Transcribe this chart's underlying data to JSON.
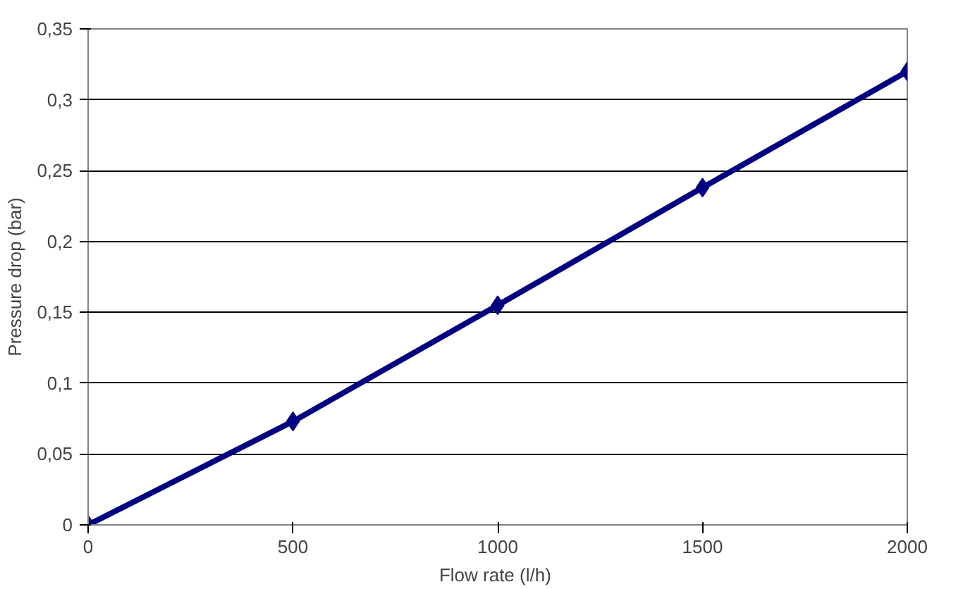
{
  "chart_data": {
    "type": "line",
    "xlabel": "Flow rate  (l/h)",
    "ylabel": "Pressure drop (bar)",
    "x": [
      0,
      500,
      1000,
      1500,
      2000
    ],
    "series": [
      {
        "color": "#000080",
        "values": [
          0,
          0.073,
          0.155,
          0.238,
          0.32
        ]
      }
    ],
    "xlim": [
      0,
      2000
    ],
    "xticks": [
      0,
      500,
      1000,
      1500,
      2000
    ],
    "ylim": [
      0,
      0.35
    ],
    "yticks": [
      {
        "value": 0,
        "label": "0"
      },
      {
        "value": 0.05,
        "label": "0,05"
      },
      {
        "value": 0.1,
        "label": "0,1"
      },
      {
        "value": 0.15,
        "label": "0,15"
      },
      {
        "value": 0.2,
        "label": "0,2"
      },
      {
        "value": 0.25,
        "label": "0,25"
      },
      {
        "value": 0.3,
        "label": "0,3"
      },
      {
        "value": 0.35,
        "label": "0,35"
      }
    ],
    "grid": "y",
    "marker": "diamond",
    "line_style": "solid"
  }
}
